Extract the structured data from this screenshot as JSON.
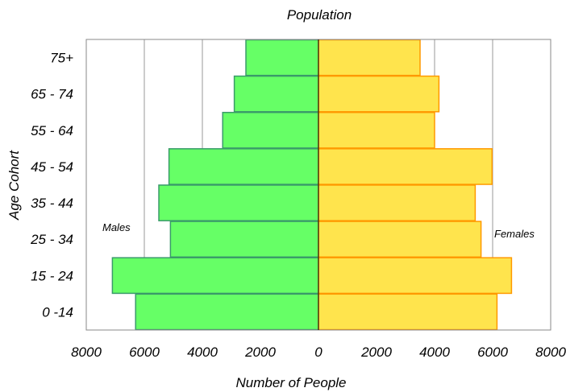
{
  "chart_data": {
    "type": "bar",
    "orientation": "horizontal",
    "title": "Population",
    "xlabel": "Number of People",
    "ylabel": "Age Cohort",
    "categories": [
      "0 -14",
      "15 - 24",
      "25 - 34",
      "35 - 44",
      "45 - 54",
      "55 - 64",
      "65 - 74",
      "75+"
    ],
    "series": [
      {
        "name": "Males",
        "side": "left",
        "color": "#66ff66",
        "edge": "#3a9a6a",
        "values": [
          6300,
          7100,
          5100,
          5500,
          5150,
          3300,
          2900,
          2500
        ]
      },
      {
        "name": "Females",
        "side": "right",
        "color": "#ffe44d",
        "edge": "#ff9900",
        "values": [
          6150,
          6650,
          5600,
          5400,
          5980,
          4000,
          4150,
          3500
        ]
      }
    ],
    "xlim": [
      -8000,
      8000
    ],
    "xticks": [
      -8000,
      -6000,
      -4000,
      -2000,
      0,
      2000,
      4000,
      6000,
      8000
    ],
    "xtick_labels": [
      "8000",
      "6000",
      "4000",
      "2000",
      "0",
      "2000",
      "4000",
      "6000",
      "8000"
    ],
    "grid": "vertical",
    "annotations": [
      "Males",
      "Females"
    ]
  }
}
